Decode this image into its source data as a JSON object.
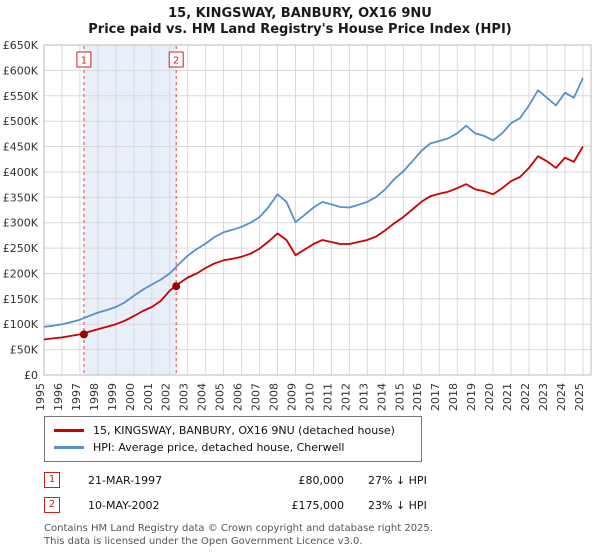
{
  "title": {
    "line1": "15, KINGSWAY, BANBURY, OX16 9NU",
    "line2": "Price paid vs. HM Land Registry's House Price Index (HPI)"
  },
  "chart_data": {
    "type": "line",
    "title": "Price paid vs. HM Land Registry's House Price Index (HPI)",
    "xlabel": "",
    "ylabel": "",
    "xlim": [
      1995,
      2025.45
    ],
    "ylim": [
      0,
      650000
    ],
    "ytick_step": 50000,
    "grid": true,
    "legend_position": "bottom",
    "x_ticks": [
      1995,
      1996,
      1997,
      1998,
      1999,
      2000,
      2001,
      2002,
      2003,
      2004,
      2005,
      2006,
      2007,
      2008,
      2009,
      2010,
      2011,
      2012,
      2013,
      2014,
      2015,
      2016,
      2017,
      2018,
      2019,
      2020,
      2021,
      2022,
      2023,
      2024,
      2025
    ],
    "x": [
      1995,
      1995.5,
      1996,
      1996.5,
      1997,
      1997.5,
      1998,
      1998.5,
      1999,
      1999.5,
      2000,
      2000.5,
      2001,
      2001.5,
      2002,
      2002.5,
      2003,
      2003.5,
      2004,
      2004.5,
      2005,
      2005.5,
      2006,
      2006.5,
      2007,
      2007.5,
      2008,
      2008.5,
      2009,
      2009.5,
      2010,
      2010.5,
      2011,
      2011.5,
      2012,
      2012.5,
      2013,
      2013.5,
      2014,
      2014.5,
      2015,
      2015.5,
      2016,
      2016.5,
      2017,
      2017.5,
      2018,
      2018.5,
      2019,
      2019.5,
      2020,
      2020.5,
      2021,
      2021.5,
      2022,
      2022.5,
      2023,
      2023.5,
      2024,
      2024.5,
      2025
    ],
    "series": [
      {
        "name": "15, KINGSWAY, BANBURY, OX16 9NU (detached house)",
        "color": "#cc0000",
        "values": [
          70000,
          72000,
          74000,
          77000,
          80000,
          85000,
          90000,
          95000,
          100000,
          107000,
          116000,
          126000,
          134000,
          146000,
          166000,
          180000,
          192000,
          200000,
          211000,
          220000,
          226000,
          229000,
          233000,
          239000,
          249000,
          263000,
          279000,
          266000,
          236000,
          247000,
          258000,
          266000,
          262000,
          258000,
          258000,
          262000,
          266000,
          273000,
          285000,
          299000,
          311000,
          326000,
          341000,
          352000,
          357000,
          361000,
          368000,
          376000,
          366000,
          362000,
          356000,
          368000,
          382000,
          390000,
          408000,
          431000,
          421000,
          408000,
          428000,
          420000,
          450000
        ]
      },
      {
        "name": "HPI: Average price, detached house, Cherwell",
        "color": "#5b8fc9",
        "values": [
          95000,
          97000,
          100000,
          104000,
          109000,
          116000,
          123000,
          128000,
          134000,
          143000,
          156000,
          168000,
          178000,
          188000,
          200000,
          218000,
          235000,
          248000,
          259000,
          272000,
          281000,
          286000,
          292000,
          300000,
          311000,
          331000,
          356000,
          341000,
          301000,
          315000,
          330000,
          341000,
          336000,
          331000,
          330000,
          335000,
          341000,
          351000,
          366000,
          386000,
          401000,
          421000,
          441000,
          456000,
          461000,
          466000,
          476000,
          491000,
          476000,
          471000,
          462000,
          476000,
          496000,
          506000,
          531000,
          561000,
          546000,
          531000,
          556000,
          546000,
          585000
        ]
      }
    ],
    "sale_markers": [
      {
        "label": "1",
        "x": 1997.22,
        "y": 80000
      },
      {
        "label": "2",
        "x": 2002.36,
        "y": 175000
      }
    ],
    "shaded_region": [
      1997.22,
      2002.36
    ],
    "colors": {
      "shade": "#e9eff9",
      "grid": "#d9d9d9",
      "frame": "#bbbbbb",
      "dashed_line": "#dd4444",
      "sale_dot": "#990000",
      "marker_box": "#cc2222",
      "tick_text": "#333333"
    }
  },
  "legend": {
    "items": [
      {
        "label": "15, KINGSWAY, BANBURY, OX16 9NU (detached house)",
        "color": "#cc0000"
      },
      {
        "label": "HPI: Average price, detached house, Cherwell",
        "color": "#5b8fc9"
      }
    ]
  },
  "transactions": [
    {
      "num": "1",
      "date": "21-MAR-1997",
      "price": "£80,000",
      "hpi_diff": "27% ↓ HPI"
    },
    {
      "num": "2",
      "date": "10-MAY-2002",
      "price": "£175,000",
      "hpi_diff": "23% ↓ HPI"
    }
  ],
  "footer": {
    "line1": "Contains HM Land Registry data © Crown copyright and database right 2025.",
    "line2": "This data is licensed under the Open Government Licence v3.0."
  }
}
